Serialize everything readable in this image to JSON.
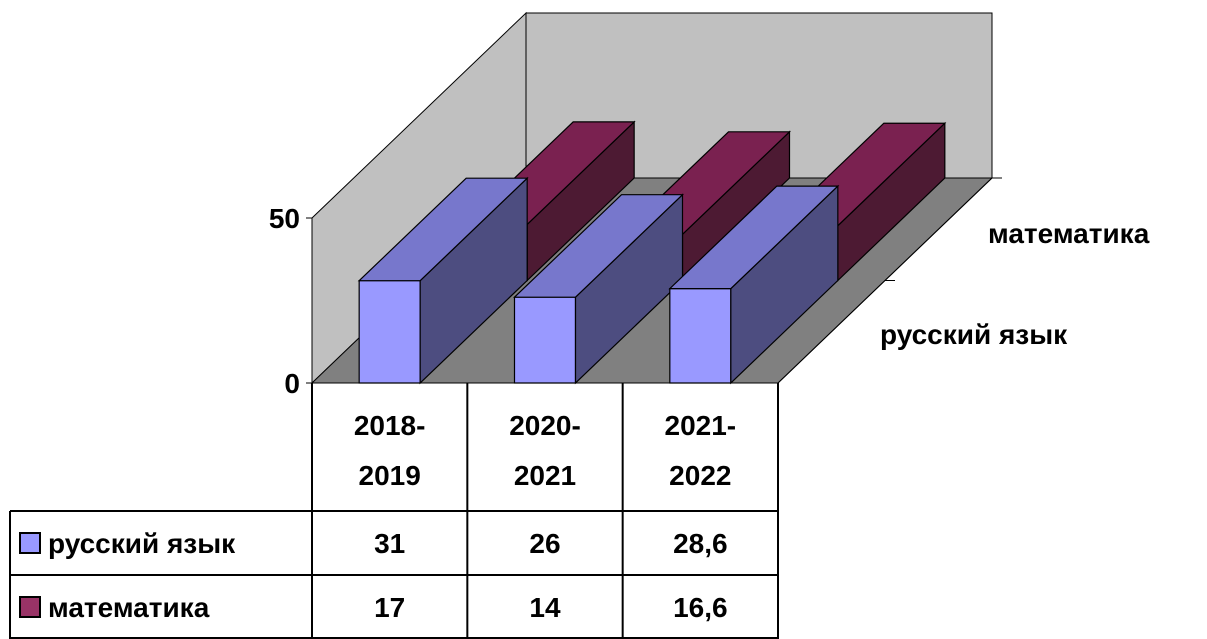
{
  "chart_data": {
    "type": "bar",
    "categories": [
      "2018-2019",
      "2020-2021",
      "2021-2022"
    ],
    "category_lines": [
      [
        "2018-",
        "2019"
      ],
      [
        "2020-",
        "2021"
      ],
      [
        "2021-",
        "2022"
      ]
    ],
    "series": [
      {
        "name": "русский язык",
        "values": [
          31,
          26,
          28.6
        ],
        "value_labels": [
          "31",
          "26",
          "28,6"
        ],
        "color": "#9999ff",
        "side_color": "#4d4d80",
        "top_color": "#7777cc"
      },
      {
        "name": "математика",
        "values": [
          17,
          14,
          16.6
        ],
        "value_labels": [
          "17",
          "14",
          "16,6"
        ],
        "color": "#993366",
        "side_color": "#4d1a33",
        "top_color": "#7a2150"
      }
    ],
    "depth_labels": [
      "русский язык",
      "математика"
    ],
    "y_ticks": [
      "0",
      "50"
    ],
    "ylim": [
      0,
      50
    ],
    "grid": false,
    "legend": "data-table"
  },
  "colors": {
    "wall_back": "#c0c0c0",
    "wall_side": "#c0c0c0",
    "floor": "#808080",
    "outline": "#000000"
  }
}
